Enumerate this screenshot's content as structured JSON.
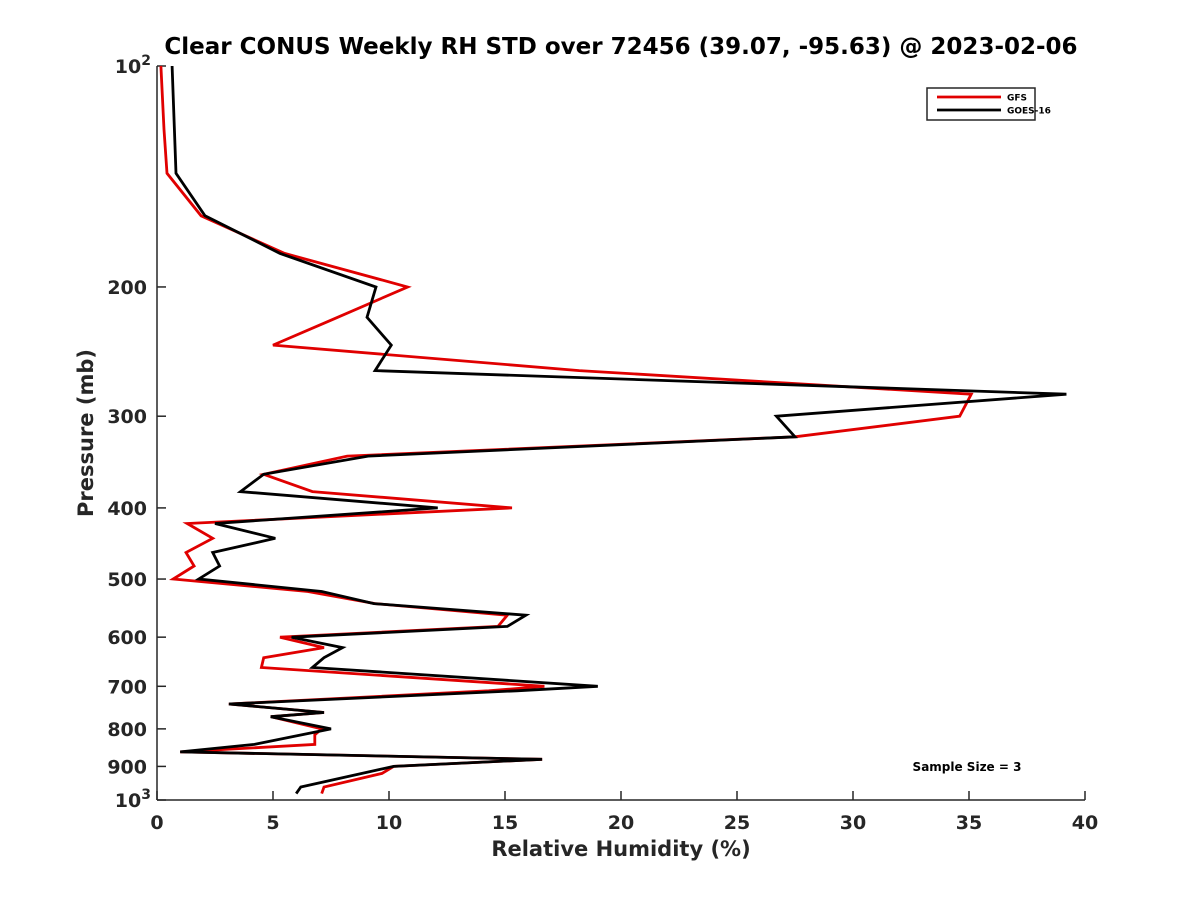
{
  "chart_data": {
    "type": "line",
    "title": "Clear CONUS Weekly RH STD over 72456 (39.07, -95.63) @ 2023-02-06",
    "xlabel": "Relative Humidity (%)",
    "ylabel": "Pressure (mb)",
    "xlim": [
      0,
      40
    ],
    "ylim": [
      100,
      1000
    ],
    "yscale": "log",
    "y_reversed": true,
    "grid": false,
    "x_ticks": [
      0,
      5,
      10,
      15,
      20,
      25,
      30,
      35,
      40
    ],
    "x_tick_labels": [
      "0",
      "5",
      "10",
      "15",
      "20",
      "25",
      "30",
      "35",
      "40"
    ],
    "y_ticks": [
      100,
      200,
      300,
      400,
      500,
      600,
      700,
      800,
      900,
      1000
    ],
    "y_tick_labels": [
      {
        "base": "10",
        "exp": "2"
      },
      {
        "base": "200"
      },
      {
        "base": "300"
      },
      {
        "base": "400"
      },
      {
        "base": "500"
      },
      {
        "base": "600"
      },
      {
        "base": "700"
      },
      {
        "base": "800"
      },
      {
        "base": "900"
      },
      {
        "base": "10",
        "exp": "3"
      }
    ],
    "legend": {
      "position": "top-right"
    },
    "annotation": "Sample Size = 3",
    "series": [
      {
        "name": "GFS",
        "color": "#e00000",
        "points": [
          [
            0.17,
            100
          ],
          [
            0.3,
            122
          ],
          [
            0.43,
            140
          ],
          [
            1.9,
            160
          ],
          [
            5.5,
            180
          ],
          [
            10.8,
            200
          ],
          [
            7.5,
            222
          ],
          [
            5.0,
            240
          ],
          [
            18.2,
            260
          ],
          [
            35.1,
            280
          ],
          [
            34.6,
            300
          ],
          [
            27.5,
            320
          ],
          [
            8.2,
            340
          ],
          [
            4.6,
            360
          ],
          [
            6.7,
            380
          ],
          [
            15.3,
            400
          ],
          [
            1.3,
            420
          ],
          [
            2.4,
            440
          ],
          [
            1.25,
            460
          ],
          [
            1.6,
            480
          ],
          [
            0.7,
            500
          ],
          [
            6.5,
            520
          ],
          [
            9.4,
            540
          ],
          [
            15.1,
            560
          ],
          [
            14.7,
            580
          ],
          [
            5.3,
            600
          ],
          [
            7.2,
            620
          ],
          [
            4.6,
            640
          ],
          [
            4.5,
            660
          ],
          [
            16.7,
            700
          ],
          [
            14.3,
            710
          ],
          [
            3.1,
            740
          ],
          [
            7.2,
            760
          ],
          [
            4.9,
            770
          ],
          [
            7.1,
            800
          ],
          [
            6.8,
            815
          ],
          [
            6.8,
            840
          ],
          [
            1.0,
            860
          ],
          [
            16.6,
            880
          ],
          [
            10.2,
            900
          ],
          [
            9.7,
            920
          ],
          [
            7.2,
            960
          ],
          [
            7.1,
            980
          ]
        ]
      },
      {
        "name": "GOES-16",
        "color": "#000000",
        "points": [
          [
            0.65,
            100
          ],
          [
            0.82,
            140
          ],
          [
            2.07,
            160
          ],
          [
            5.3,
            180
          ],
          [
            9.44,
            200
          ],
          [
            9.05,
            220
          ],
          [
            10.1,
            240
          ],
          [
            9.4,
            260
          ],
          [
            39.2,
            280
          ],
          [
            26.7,
            300
          ],
          [
            27.5,
            320
          ],
          [
            9.1,
            340
          ],
          [
            4.6,
            360
          ],
          [
            3.6,
            380
          ],
          [
            12.1,
            400
          ],
          [
            2.5,
            420
          ],
          [
            5.1,
            440
          ],
          [
            2.4,
            460
          ],
          [
            2.7,
            480
          ],
          [
            1.8,
            500
          ],
          [
            7.1,
            520
          ],
          [
            9.35,
            540
          ],
          [
            15.9,
            560
          ],
          [
            15.1,
            580
          ],
          [
            5.8,
            600
          ],
          [
            8.0,
            620
          ],
          [
            7.2,
            640
          ],
          [
            6.7,
            660
          ],
          [
            19.0,
            700
          ],
          [
            15.5,
            710
          ],
          [
            3.1,
            740
          ],
          [
            7.2,
            760
          ],
          [
            4.9,
            770
          ],
          [
            7.5,
            800
          ],
          [
            4.2,
            840
          ],
          [
            1.0,
            860
          ],
          [
            16.6,
            880
          ],
          [
            10.2,
            900
          ],
          [
            6.2,
            960
          ],
          [
            6.0,
            980
          ]
        ]
      }
    ]
  }
}
